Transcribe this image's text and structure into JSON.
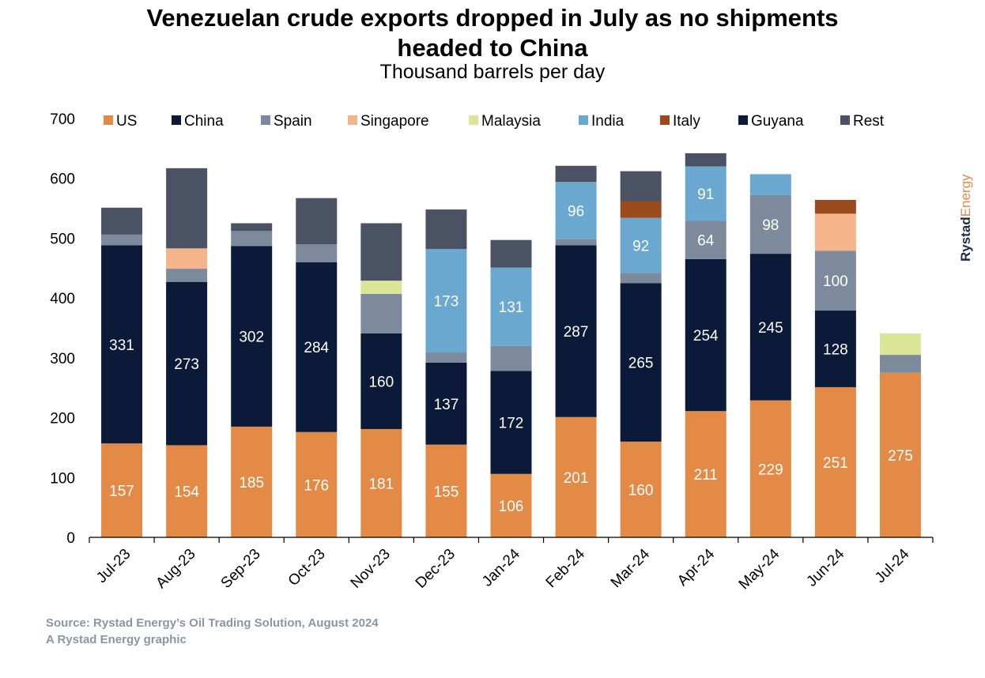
{
  "header": {
    "title_line1": "Venezuelan crude exports dropped in July as no shipments",
    "title_line2": "headed to China",
    "subtitle": "Thousand barrels per day"
  },
  "brand": {
    "part1": "Rystad",
    "part2": "Energy"
  },
  "footer": {
    "source": "Source: Rystad Energy’s Oil Trading Solution, August 2024",
    "credit": "A Rystad Energy graphic"
  },
  "chart_data": {
    "type": "bar",
    "stacked": true,
    "title": "Venezuelan crude exports dropped in July as no shipments headed to China",
    "subtitle": "Thousand barrels per day",
    "ylim": [
      0,
      700
    ],
    "yticks": [
      0,
      100,
      200,
      300,
      400,
      500,
      600,
      700
    ],
    "legend_position": "top",
    "categories": [
      "Jul-23",
      "Aug-23",
      "Sep-23",
      "Oct-23",
      "Nov-23",
      "Dec-23",
      "Jan-24",
      "Feb-24",
      "Mar-24",
      "Apr-24",
      "May-24",
      "Jun-24",
      "Jul-24"
    ],
    "series": [
      {
        "name": "US",
        "color": "#e48a47",
        "values": [
          157,
          154,
          185,
          176,
          181,
          155,
          106,
          201,
          160,
          211,
          229,
          251,
          275
        ],
        "labels": [
          "157",
          "154",
          "185",
          "176",
          "181",
          "155",
          "106",
          "201",
          "160",
          "211",
          "229",
          "251",
          "275"
        ]
      },
      {
        "name": "China",
        "color": "#0b1a39",
        "values": [
          331,
          273,
          302,
          284,
          160,
          137,
          172,
          287,
          265,
          254,
          245,
          128,
          0
        ],
        "labels": [
          "331",
          "273",
          "302",
          "284",
          "160",
          "137",
          "172",
          "287",
          "265",
          "254",
          "245",
          "128",
          ""
        ]
      },
      {
        "name": "Spain",
        "color": "#7d8a9c",
        "values": [
          18,
          22,
          25,
          30,
          66,
          17,
          42,
          10,
          17,
          64,
          98,
          100,
          30
        ],
        "labels": [
          "",
          "",
          "",
          "",
          "",
          "",
          "",
          "",
          "",
          "64",
          "98",
          "100",
          ""
        ]
      },
      {
        "name": "Singapore",
        "color": "#f4b48c",
        "values": [
          0,
          34,
          0,
          0,
          0,
          0,
          0,
          0,
          0,
          0,
          0,
          62,
          0
        ],
        "labels": [
          "",
          "",
          "",
          "",
          "",
          "",
          "",
          "",
          "",
          "",
          "",
          "",
          ""
        ]
      },
      {
        "name": "Malaysia",
        "color": "#dbe597",
        "values": [
          0,
          0,
          0,
          0,
          22,
          0,
          0,
          0,
          0,
          0,
          0,
          0,
          36
        ],
        "labels": [
          "",
          "",
          "",
          "",
          "",
          "",
          "",
          "",
          "",
          "",
          "",
          "",
          ""
        ]
      },
      {
        "name": "India",
        "color": "#6aa8d0",
        "values": [
          0,
          0,
          0,
          0,
          0,
          173,
          131,
          96,
          92,
          91,
          35,
          0,
          0
        ],
        "labels": [
          "",
          "",
          "",
          "",
          "",
          "173",
          "131",
          "96",
          "92",
          "91",
          "",
          "",
          ""
        ]
      },
      {
        "name": "Italy",
        "color": "#9b4a1c",
        "values": [
          0,
          0,
          0,
          0,
          0,
          0,
          0,
          0,
          28,
          0,
          0,
          23,
          0
        ],
        "labels": [
          "",
          "",
          "",
          "",
          "",
          "",
          "",
          "",
          "",
          "",
          "",
          "",
          ""
        ]
      },
      {
        "name": "Guyana",
        "color": "#0b1a39",
        "values": [
          0,
          0,
          0,
          0,
          0,
          0,
          0,
          0,
          0,
          0,
          0,
          0,
          0
        ],
        "labels": [
          "",
          "",
          "",
          "",
          "",
          "",
          "",
          "",
          "",
          "",
          "",
          "",
          ""
        ]
      },
      {
        "name": "Rest",
        "color": "#4a5263",
        "values": [
          45,
          134,
          13,
          77,
          96,
          66,
          46,
          27,
          50,
          22,
          0,
          0,
          0
        ],
        "labels": [
          "",
          "",
          "",
          "",
          "",
          "",
          "",
          "",
          "",
          "",
          "",
          "",
          ""
        ]
      }
    ]
  }
}
